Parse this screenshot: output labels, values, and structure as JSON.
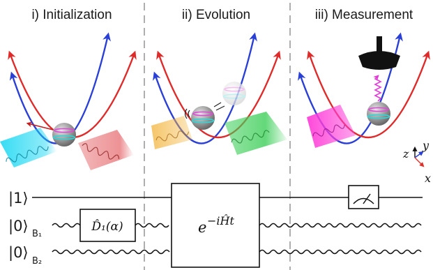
{
  "panels": {
    "initialization": {
      "title": "i) Initialization"
    },
    "evolution": {
      "title": "ii) Evolution"
    },
    "measurement": {
      "title": "iii) Measurement"
    }
  },
  "axes": {
    "z": "z",
    "y": "y",
    "x": "x"
  },
  "circuit": {
    "wires": {
      "qubit": {
        "ket": "|1⟩"
      },
      "mode_b1": {
        "ket": "|0⟩",
        "sub": "B₁"
      },
      "mode_b2": {
        "ket": "|0⟩",
        "sub": "B₂"
      }
    },
    "displacement_gate": {
      "op": "D̂₁(α)"
    },
    "evolution_gate": {
      "base": "e",
      "exponent": "−iĤt"
    },
    "meter": {
      "icon": "meter-icon"
    }
  },
  "colors": {
    "potential_blue": "#2a3fd6",
    "potential_red": "#e02a2a",
    "laser_cyan": "#13d6f2",
    "laser_red": "#e0484d",
    "laser_orange": "#f3b43a",
    "laser_green": "#3fcf5a",
    "laser_magenta": "#ff3fd8",
    "ion_gray": "#8f8f8f",
    "ion_band_magenta": "#e04ad8",
    "ion_band_cyan": "#2ad8d8",
    "detector_black": "#111111",
    "photon_magenta": "#e13cd6",
    "divider_gray": "#999999"
  }
}
